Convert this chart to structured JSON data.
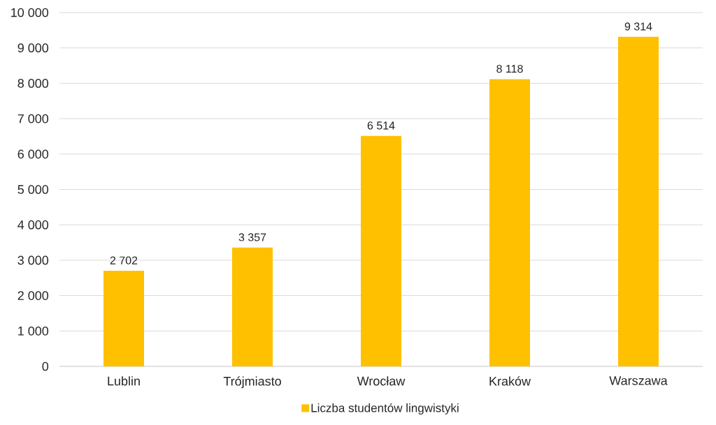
{
  "chart_data": {
    "type": "bar",
    "categories": [
      "Lublin",
      "Trójmiasto",
      "Wrocław",
      "Kraków",
      "Warszawa"
    ],
    "series": [
      {
        "name": "Liczba studentów lingwistyki",
        "color": "#ffc000",
        "values": [
          2702,
          3357,
          6514,
          8118,
          9314
        ],
        "value_labels": [
          "2 702",
          "3 357",
          "6 514",
          "8 118",
          "9 314"
        ]
      }
    ],
    "ylim": [
      0,
      10000
    ],
    "yticks": [
      0,
      {
        "value": 1000,
        "label": "1 000"
      },
      {
        "value": 2000,
        "label": "2 000"
      },
      {
        "value": 3000,
        "label": "3 000"
      },
      {
        "value": 4000,
        "label": "4 000"
      },
      {
        "value": 5000,
        "label": "5 000"
      },
      {
        "value": 6000,
        "label": "6 000"
      },
      {
        "value": 7000,
        "label": "7 000"
      },
      {
        "value": 8000,
        "label": "8 000"
      },
      {
        "value": 9000,
        "label": "9 000"
      },
      {
        "value": 10000,
        "label": "10 000"
      }
    ],
    "grid": "y",
    "legend": "bottom"
  }
}
